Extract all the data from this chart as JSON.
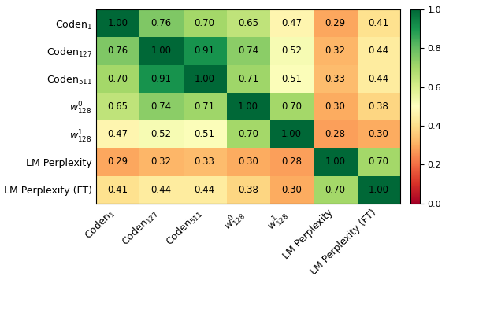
{
  "matrix": [
    [
      1.0,
      0.76,
      0.7,
      0.65,
      0.47,
      0.29,
      0.41
    ],
    [
      0.76,
      1.0,
      0.91,
      0.74,
      0.52,
      0.32,
      0.44
    ],
    [
      0.7,
      0.91,
      1.0,
      0.71,
      0.51,
      0.33,
      0.44
    ],
    [
      0.65,
      0.74,
      0.71,
      1.0,
      0.7,
      0.3,
      0.38
    ],
    [
      0.47,
      0.52,
      0.51,
      0.7,
      1.0,
      0.28,
      0.3
    ],
    [
      0.29,
      0.32,
      0.33,
      0.3,
      0.28,
      1.0,
      0.7
    ],
    [
      0.41,
      0.44,
      0.44,
      0.38,
      0.3,
      0.7,
      1.0
    ]
  ],
  "row_labels": [
    "Coden$_1$",
    "Coden$_{127}$",
    "Coden$_{511}$",
    "$w^0_{128}$",
    "$w^1_{128}$",
    "LM Perplexity",
    "LM Perplexity (FT)"
  ],
  "col_labels": [
    "Coden$_1$",
    "Coden$_{127}$",
    "Coden$_{511}$",
    "$w^0_{128}$",
    "$w^1_{128}$",
    "LM Perplexity",
    "LM Perplexity (FT)"
  ],
  "vmin": 0.0,
  "vmax": 1.0,
  "colormap": "RdYlGn",
  "text_color": "black",
  "fontsize_cells": 8.5,
  "fontsize_labels": 9,
  "colorbar_ticks": [
    0.0,
    0.2,
    0.4,
    0.6,
    0.8,
    1.0
  ],
  "colorbar_fontsize": 8
}
